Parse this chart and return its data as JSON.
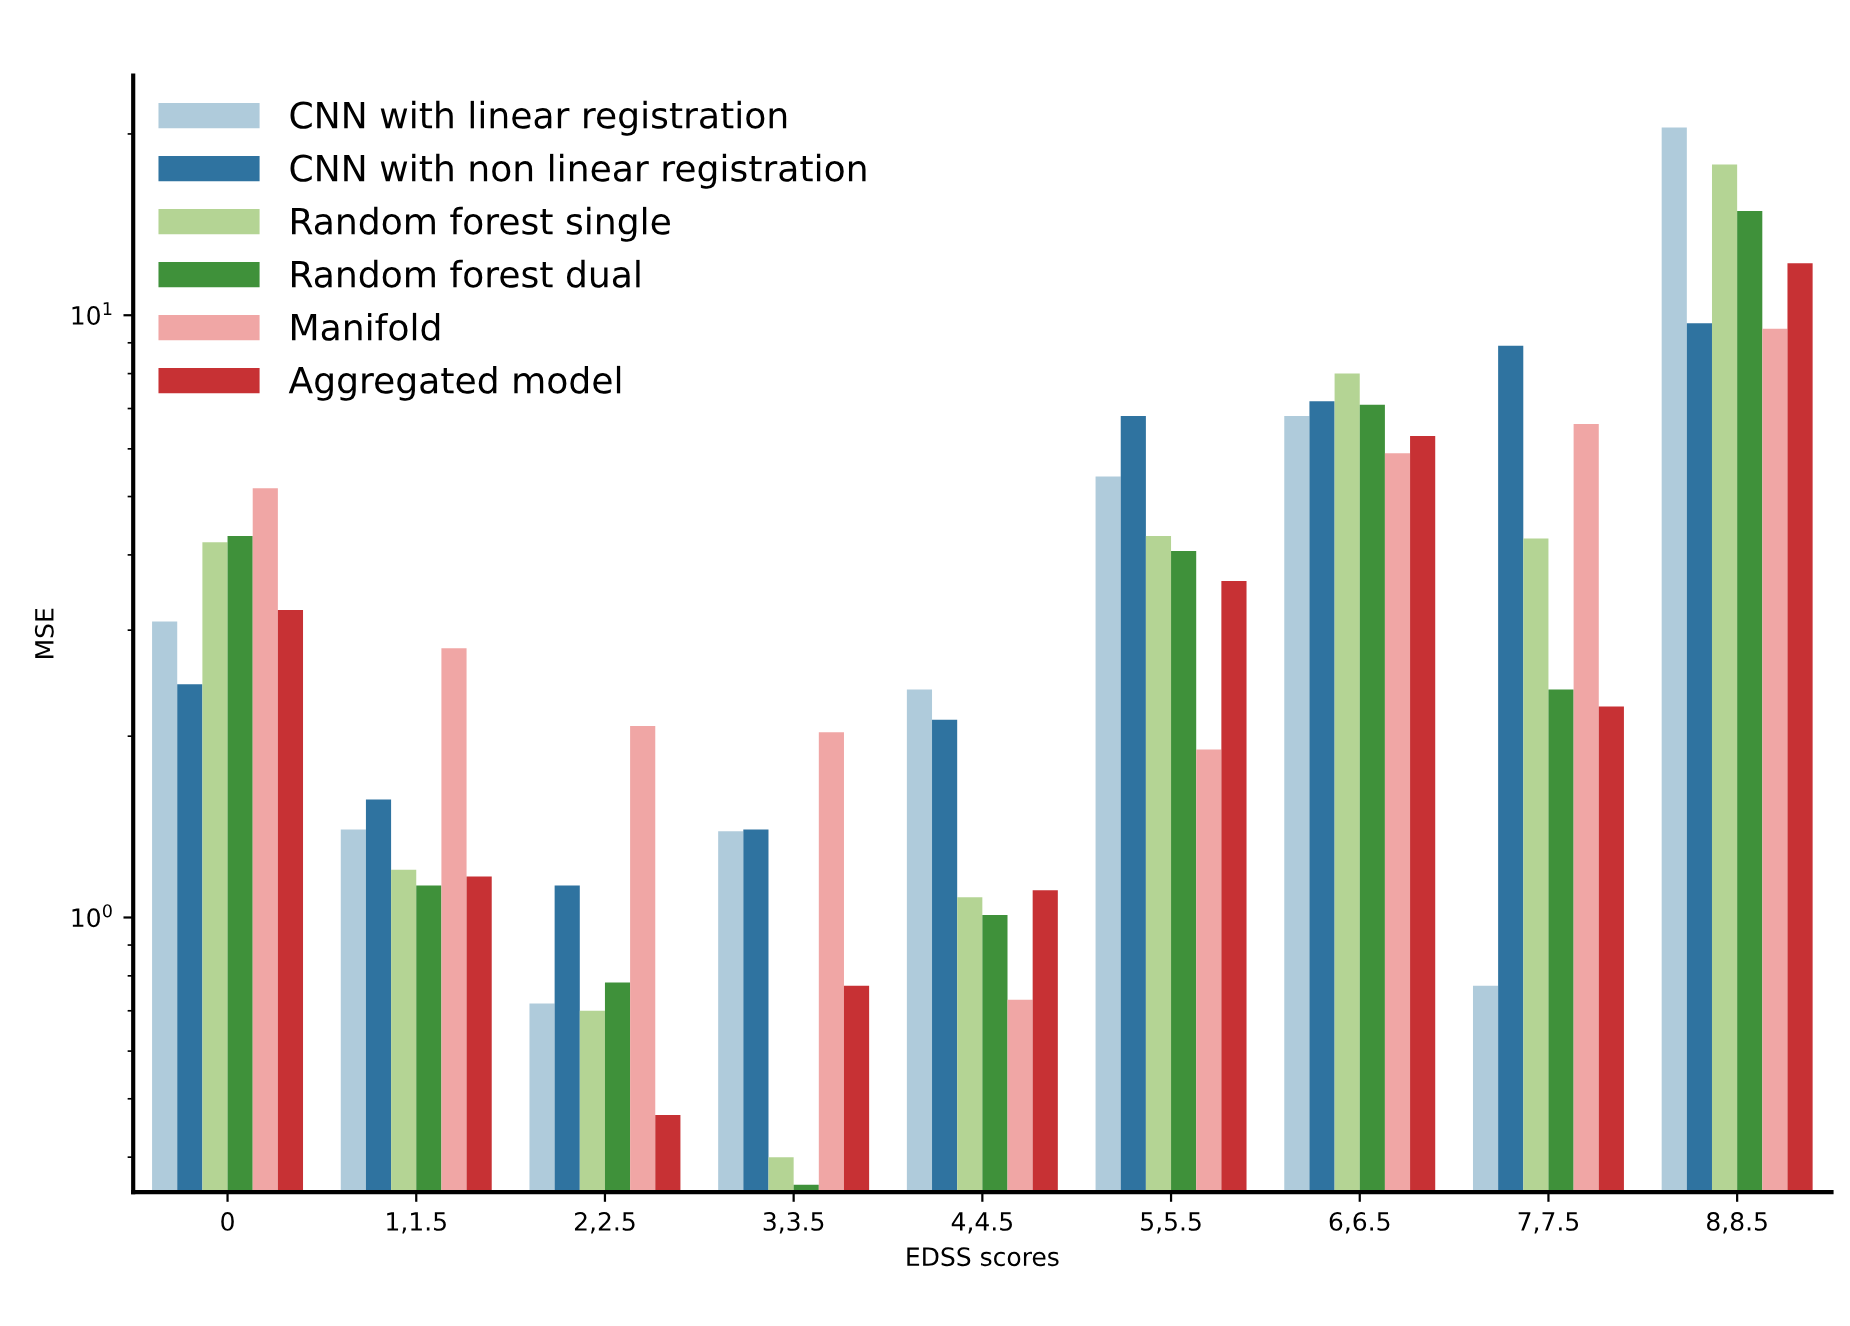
{
  "chart_data": {
    "type": "bar",
    "xlabel": "EDSS scores",
    "ylabel": "MSE",
    "categories": [
      "0",
      "1,1.5",
      "2,2.5",
      "3,3.5",
      "4,4.5",
      "5,5.5",
      "6,6.5",
      "7,7.5",
      "8,8.5"
    ],
    "series": [
      {
        "name": "CNN with linear registration",
        "color": "#afcbdb",
        "values": [
          3.1,
          1.4,
          0.72,
          1.39,
          2.39,
          5.4,
          6.8,
          0.77,
          20.5
        ]
      },
      {
        "name": "CNN with non linear registration",
        "color": "#2f73a0",
        "values": [
          2.44,
          1.57,
          1.13,
          1.4,
          2.13,
          6.8,
          7.2,
          8.9,
          9.7
        ]
      },
      {
        "name": "Random forest single",
        "color": "#b4d494",
        "values": [
          4.2,
          1.2,
          0.7,
          0.4,
          1.08,
          4.3,
          8.0,
          4.26,
          17.8
        ]
      },
      {
        "name": "Random forest dual",
        "color": "#3f913a",
        "values": [
          4.3,
          1.13,
          0.78,
          0.36,
          1.01,
          4.06,
          7.1,
          2.39,
          14.9
        ]
      },
      {
        "name": "Manifold",
        "color": "#f0a6a5",
        "values": [
          5.16,
          2.8,
          2.08,
          2.03,
          0.73,
          1.9,
          5.9,
          6.6,
          9.5
        ]
      },
      {
        "name": "Aggregated model",
        "color": "#c73134",
        "values": [
          3.24,
          1.17,
          0.47,
          0.77,
          1.11,
          3.62,
          6.3,
          2.24,
          12.2
        ]
      }
    ],
    "log": "y",
    "ylim": [
      0.35,
      25
    ],
    "yticks": [
      {
        "value": 1,
        "label": "10$^{0}$"
      },
      {
        "value": 10,
        "label": "10$^{1}$"
      }
    ],
    "legend": "top left",
    "grid": false
  }
}
